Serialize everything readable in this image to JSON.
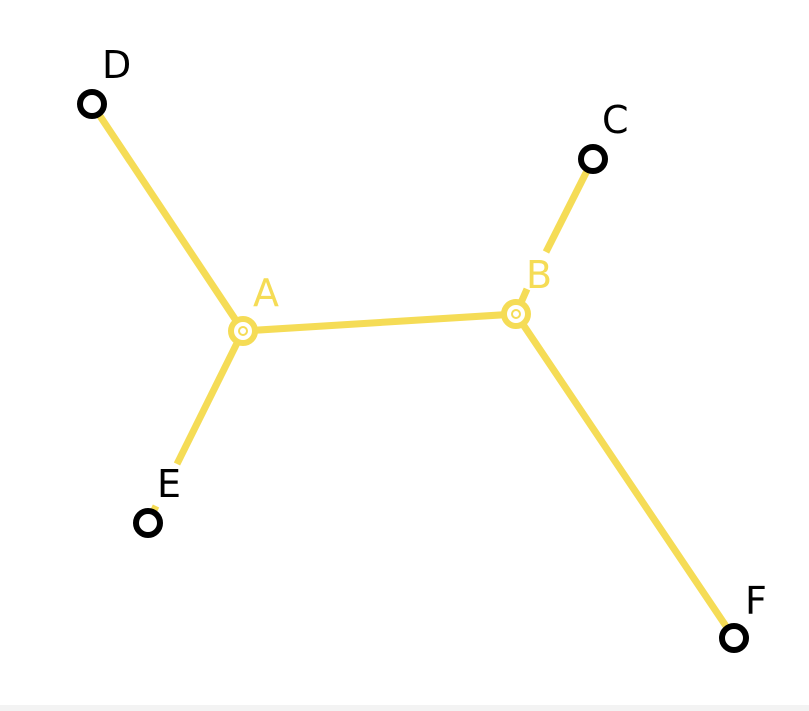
{
  "colors": {
    "edge": "#f5dc56",
    "internal_node": "#f5dc56",
    "leaf_node": "#000000",
    "background": "#ffffff"
  },
  "nodes": {
    "A": {
      "label": "A",
      "kind": "internal"
    },
    "B": {
      "label": "B",
      "kind": "internal"
    },
    "C": {
      "label": "C",
      "kind": "leaf"
    },
    "D": {
      "label": "D",
      "kind": "leaf"
    },
    "E": {
      "label": "E",
      "kind": "leaf"
    },
    "F": {
      "label": "F",
      "kind": "leaf"
    }
  },
  "edges": [
    {
      "from": "A",
      "to": "B"
    },
    {
      "from": "A",
      "to": "D"
    },
    {
      "from": "A",
      "to": "E"
    },
    {
      "from": "B",
      "to": "C"
    },
    {
      "from": "B",
      "to": "F"
    }
  ]
}
